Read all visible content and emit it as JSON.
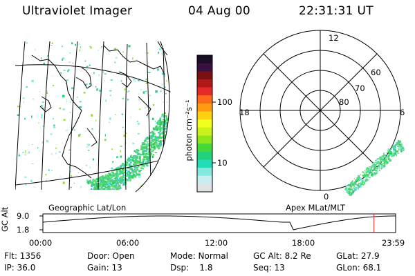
{
  "header": {
    "title": "Ultraviolet Imager",
    "date": "04 Aug 00",
    "time": "22:31:31 UT"
  },
  "geo_panel": {
    "label": "Geographic Lat/Lon"
  },
  "mag_panel": {
    "label": "Apex MLat/MLT",
    "mlt_labels": {
      "top": "12",
      "left": "18",
      "right": "6",
      "bottom": "0"
    },
    "lat_labels": [
      "60",
      "70",
      "80"
    ]
  },
  "colorbar": {
    "units_label": "photon cm⁻²s⁻¹",
    "tick_labels": [
      "100",
      "10"
    ],
    "colors": [
      "#1a0d26",
      "#3a1040",
      "#7a1010",
      "#b01818",
      "#e62a2a",
      "#ff6a1a",
      "#ff9a12",
      "#ffd012",
      "#f2ff1a",
      "#c8f21a",
      "#8ee61a",
      "#46d838",
      "#22d27a",
      "#22dcb8",
      "#86e6e0",
      "#c8eef0",
      "#e0e4e4"
    ]
  },
  "timeline": {
    "ylabel": "GC Alt",
    "y_ticks": [
      "9.0",
      "1.8"
    ],
    "x_ticks": [
      "00:00",
      "06:00",
      "12:00",
      "18:00",
      "23:59"
    ],
    "marker_color": "#e02020",
    "marker_fraction": 0.9386
  },
  "footer": {
    "rows": [
      [
        "Flt: 1356",
        "Door: Open",
        "Mode: Normal",
        "GC Alt: 8.2 Re",
        "GLat: 27.9"
      ],
      [
        "IP: 36.0",
        "Gain: 13",
        "Dsp:    1.8",
        "Seq: 13",
        "GLon: 68.1"
      ]
    ]
  },
  "colors": {
    "aurora": "#4ed46e",
    "aurora_dim": "#46c8c0",
    "line": "#000000"
  }
}
